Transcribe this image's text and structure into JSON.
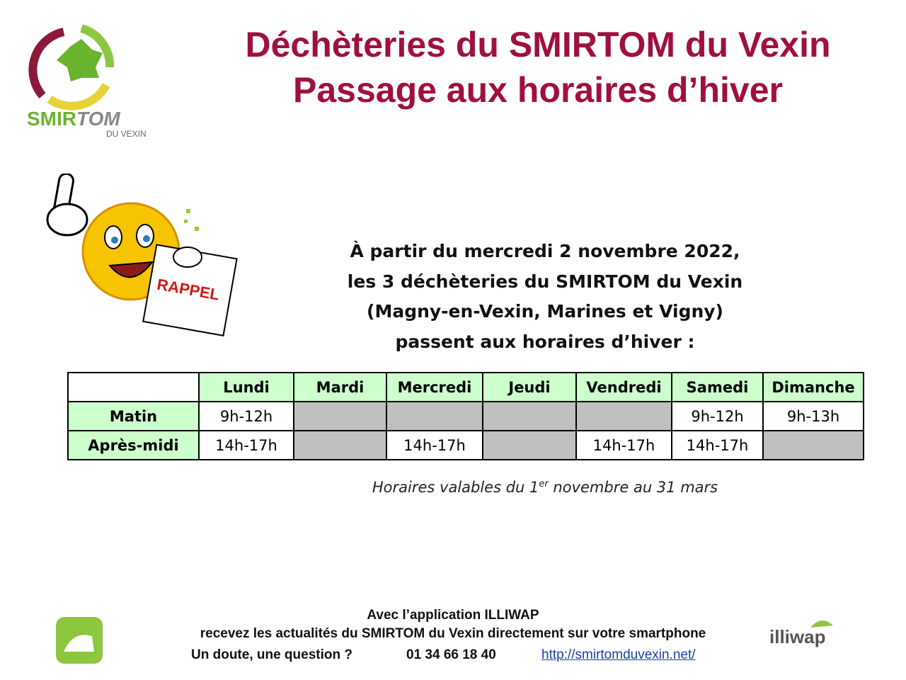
{
  "logo": {
    "name_part1": "SMIR",
    "name_part2": "TOM",
    "subtitle": "DU VEXIN"
  },
  "header": {
    "title_line1": "Déchèteries du SMIRTOM du Vexin",
    "title_line2": "Passage aux horaires d’hiver"
  },
  "sign": {
    "label": "RAPPEL"
  },
  "intro": {
    "lines": [
      "À partir du mercredi 2 novembre 2022,",
      "les 3 déchèteries du SMIRTOM du Vexin",
      "(Magny-en-Vexin, Marines et Vigny)",
      "passent aux horaires d’hiver :"
    ]
  },
  "table": {
    "header": [
      null,
      "Lundi",
      "Mardi",
      "Mercredi",
      "Jeudi",
      "Vendredi",
      "Samedi",
      "Dimanche"
    ],
    "rows": [
      [
        "Matin",
        "9h-12h",
        null,
        null,
        null,
        null,
        "9h-12h",
        "9h-13h"
      ],
      [
        "Après-midi",
        "14h-17h",
        null,
        "14h-17h",
        null,
        "14h-17h",
        "14h-17h",
        null
      ]
    ]
  },
  "note": {
    "before": "Horaires valables du 1",
    "sup": "er",
    "after": " novembre au 31 mars"
  },
  "footer": {
    "line1": "Avec l’application ILLIWAP",
    "line2": "recevez les actualités du SMIRTOM du Vexin directement sur votre smartphone",
    "question": "Un doute, une question ?",
    "phone": "01 34 66 18 40",
    "link": "http://smirtomduvexin.net/"
  },
  "illiwap": {
    "name": "illiwap"
  }
}
